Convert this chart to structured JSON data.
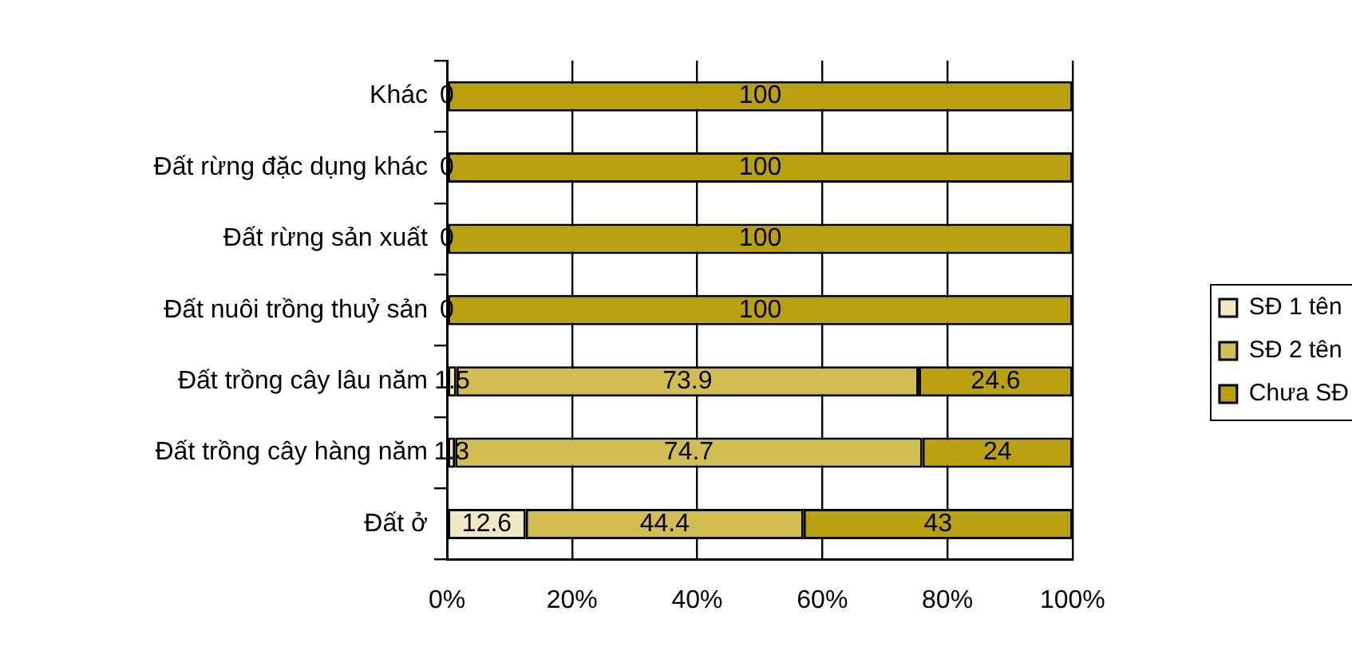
{
  "chart_data": {
    "type": "bar",
    "orientation": "horizontal",
    "stacked": true,
    "categories": [
      "Khác",
      "Đất rừng đặc dụng khác",
      "Đất rừng sản xuất",
      "Đất nuôi trồng thuỷ sản",
      "Đất trồng cây lâu năm",
      "Đất trồng cây hàng năm",
      "Đất ở"
    ],
    "series": [
      {
        "name": "SĐ 1 tên",
        "color": "#f2e9c4",
        "values": [
          0,
          0,
          0,
          0,
          1.5,
          1.3,
          12.6
        ],
        "value_labels": [
          null,
          null,
          null,
          null,
          "1.5",
          "1.3",
          "12.6"
        ]
      },
      {
        "name": "SĐ 2 tên",
        "color": "#d2bd52",
        "values": [
          0,
          0,
          0,
          0,
          73.9,
          74.7,
          44.4
        ],
        "value_labels": [
          null,
          null,
          null,
          null,
          "73.9",
          "74.7",
          "44.4"
        ]
      },
      {
        "name": "Chưa SĐ",
        "color": "#b9a00e",
        "values": [
          100,
          100,
          100,
          100,
          24.6,
          24,
          43
        ],
        "value_labels": [
          "100",
          "100",
          "100",
          "100",
          "24.6",
          "24",
          "43"
        ]
      }
    ],
    "xlim": [
      0,
      100
    ],
    "xticks": [
      {
        "value": 0,
        "label": "0%"
      },
      {
        "value": 20,
        "label": "20%"
      },
      {
        "value": 40,
        "label": "40%"
      },
      {
        "value": 60,
        "label": "60%"
      },
      {
        "value": 80,
        "label": "80%"
      },
      {
        "value": 100,
        "label": "100%"
      }
    ],
    "grid": "x",
    "legend": "right",
    "annotations": [
      {
        "text": "0",
        "y": "Khác"
      },
      {
        "text": "0",
        "y": "Đất rừng đặc dụng khác"
      },
      {
        "text": "0",
        "y": "Đất rừng sản xuất"
      },
      {
        "text": "0",
        "y": "Đất nuôi trồng thuỷ sản"
      }
    ]
  }
}
